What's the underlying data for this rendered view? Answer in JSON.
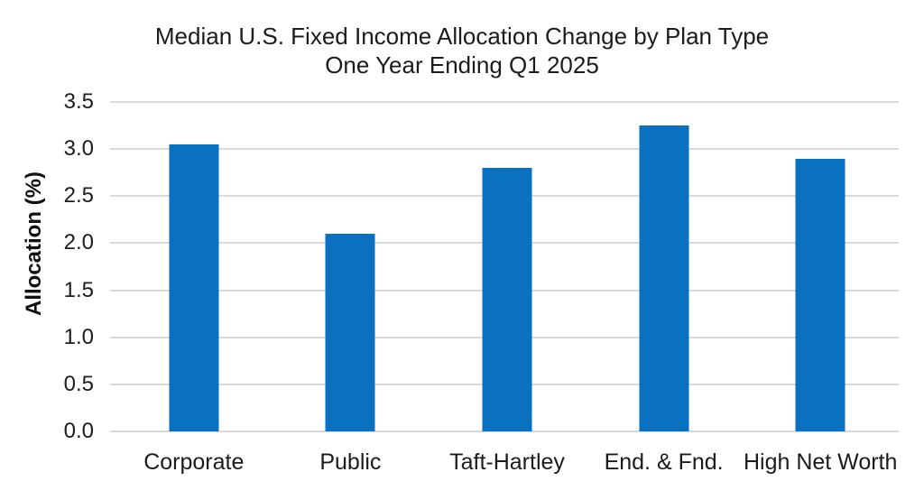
{
  "chart_data": {
    "type": "bar",
    "title_line1": "Median U.S. Fixed Income Allocation Change by Plan Type",
    "title_line2": "One Year Ending Q1 2025",
    "ylabel": "Allocation (%)",
    "xlabel": "",
    "categories": [
      "Corporate",
      "Public",
      "Taft-Hartley",
      "End. & Fnd.",
      "High Net Worth"
    ],
    "values": [
      3.05,
      2.1,
      2.8,
      3.25,
      2.9
    ],
    "ylim": [
      0,
      3.5
    ],
    "ytick_step": 0.5,
    "grid": "horizontal",
    "legend": "none",
    "colors": {
      "bar": "#0a70c0",
      "gridline": "#d9d9d9",
      "text": "#1c1c1c",
      "background": "#ffffff"
    }
  }
}
